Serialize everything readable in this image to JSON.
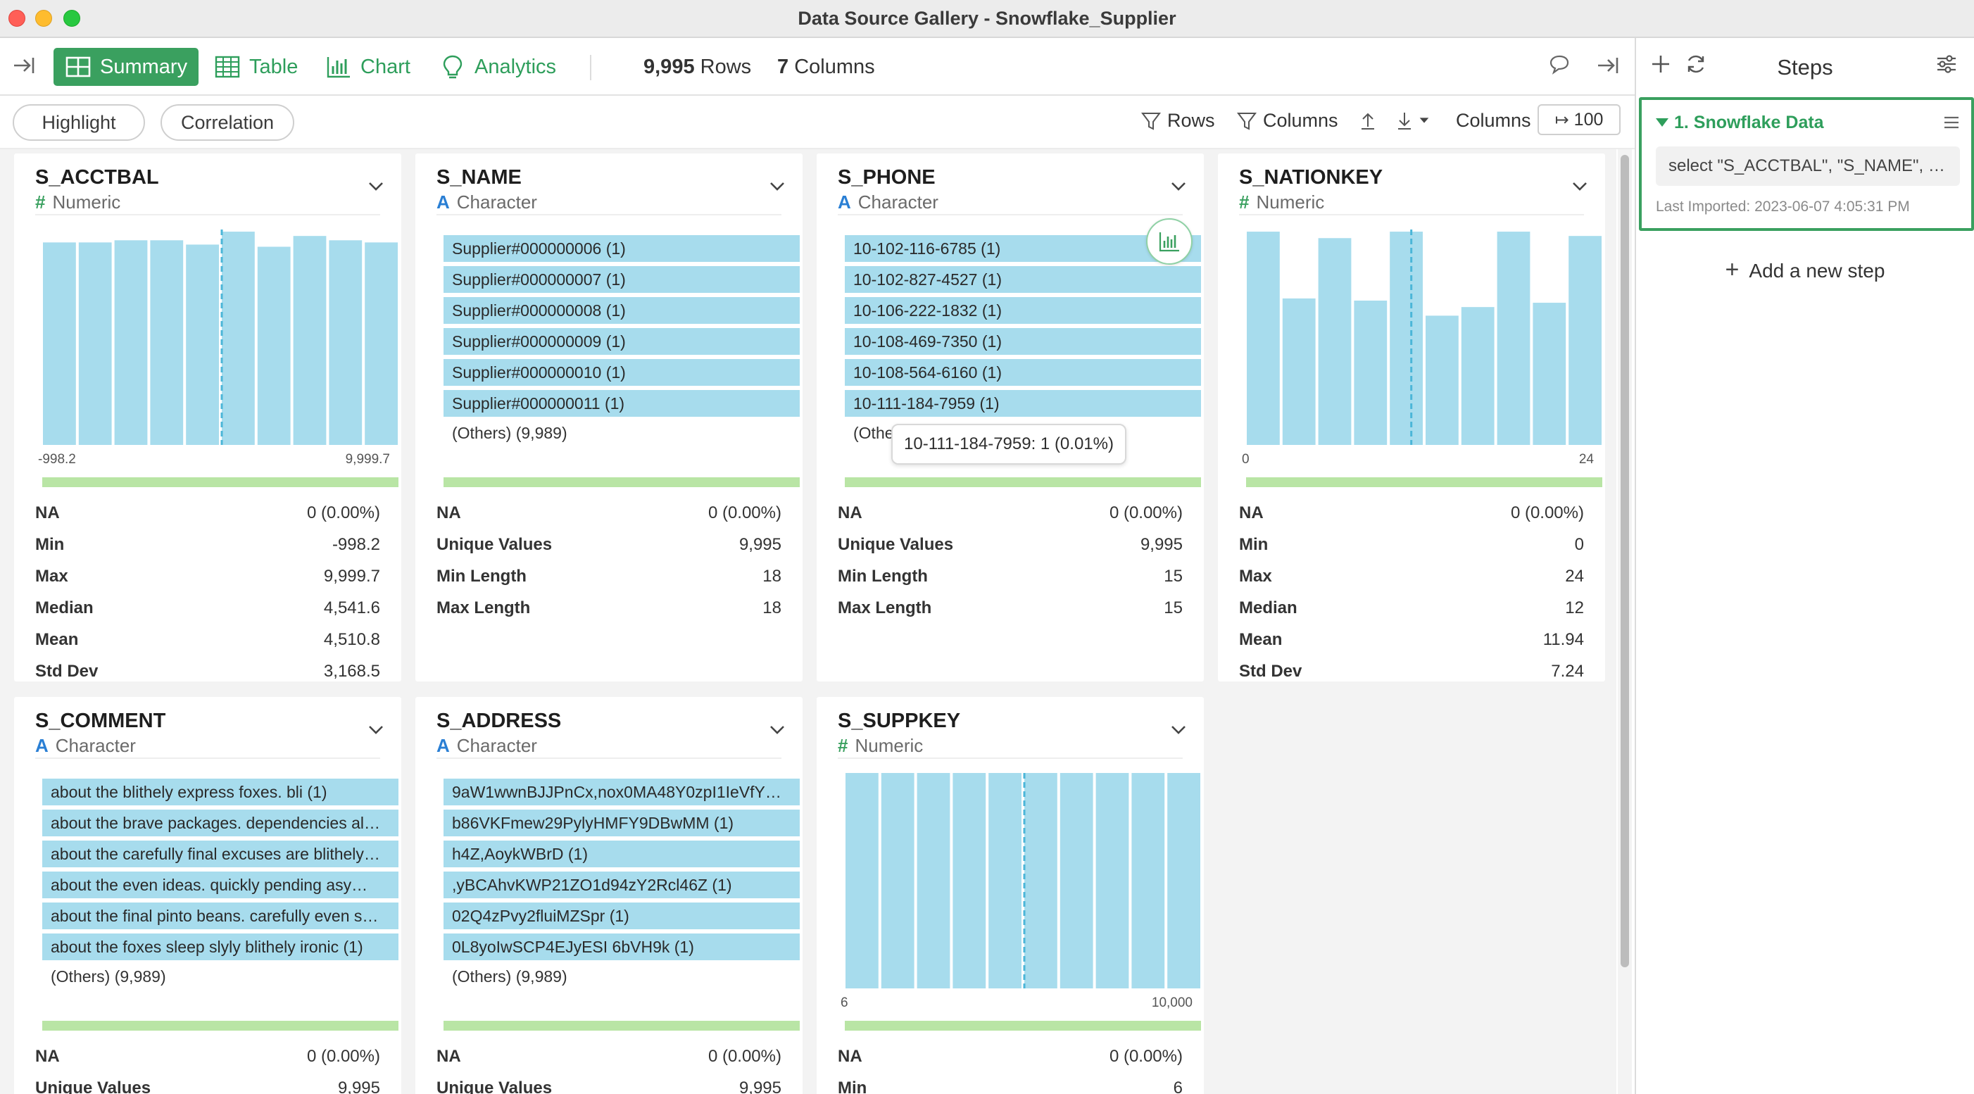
{
  "window": {
    "title": "Data Source Gallery - Snowflake_Supplier"
  },
  "toolbar": {
    "tabs": [
      {
        "label": "Summary",
        "icon": "summary-grid-icon",
        "active": true
      },
      {
        "label": "Table",
        "icon": "table-icon",
        "active": false
      },
      {
        "label": "Chart",
        "icon": "bar-chart-icon",
        "active": false
      },
      {
        "label": "Analytics",
        "icon": "lightbulb-icon",
        "active": false
      }
    ],
    "rows_count": "9,995",
    "rows_label": "Rows",
    "columns_count": "7",
    "columns_label": "Columns"
  },
  "subbar": {
    "highlight": "Highlight",
    "correlation": "Correlation",
    "rows_filter": "Rows",
    "columns_filter": "Columns",
    "columns_label": "Columns",
    "columns_limit": "100"
  },
  "cards": {
    "s_acctbal": {
      "name": "S_ACCTBAL",
      "type": "Numeric",
      "type_glyph": "#",
      "axis_min": "-998.2",
      "axis_max": "9,999.7",
      "hist_bins": [
        0.94,
        0.94,
        0.95,
        0.95,
        0.93,
        0.99,
        0.92,
        0.97,
        0.95,
        0.94
      ],
      "marker_bin": 5.0,
      "stats": [
        {
          "k": "NA",
          "v": "0 (0.00%)"
        },
        {
          "k": "Min",
          "v": "-998.2"
        },
        {
          "k": "Max",
          "v": "9,999.7"
        },
        {
          "k": "Median",
          "v": "4,541.6"
        },
        {
          "k": "Mean",
          "v": "4,510.8"
        },
        {
          "k": "Std Dev",
          "v": "3,168.5"
        }
      ]
    },
    "s_name": {
      "name": "S_NAME",
      "type": "Character",
      "type_glyph": "A",
      "values": [
        "Supplier#000000006 (1)",
        "Supplier#000000007 (1)",
        "Supplier#000000008 (1)",
        "Supplier#000000009 (1)",
        "Supplier#000000010 (1)",
        "Supplier#000000011 (1)"
      ],
      "others": "(Others) (9,989)",
      "stats": [
        {
          "k": "NA",
          "v": "0 (0.00%)"
        },
        {
          "k": "Unique Values",
          "v": "9,995"
        },
        {
          "k": "Min Length",
          "v": "18"
        },
        {
          "k": "Max Length",
          "v": "18"
        }
      ]
    },
    "s_phone": {
      "name": "S_PHONE",
      "type": "Character",
      "type_glyph": "A",
      "values": [
        "10-102-116-6785 (1)",
        "10-102-827-4527 (1)",
        "10-106-222-1832 (1)",
        "10-108-469-7350 (1)",
        "10-108-564-6160 (1)",
        "10-111-184-7959 (1)"
      ],
      "others": "(Others",
      "tooltip": "10-111-184-7959: 1 (0.01%)",
      "stats": [
        {
          "k": "NA",
          "v": "0 (0.00%)"
        },
        {
          "k": "Unique Values",
          "v": "9,995"
        },
        {
          "k": "Min Length",
          "v": "15"
        },
        {
          "k": "Max Length",
          "v": "15"
        }
      ]
    },
    "s_nationkey": {
      "name": "S_NATIONKEY",
      "type": "Numeric",
      "type_glyph": "#",
      "axis_min": "0",
      "axis_max": "24",
      "hist_bins": [
        0.99,
        0.68,
        0.96,
        0.67,
        0.99,
        0.6,
        0.64,
        0.99,
        0.66,
        0.97
      ],
      "marker_bin": 4.6,
      "stats": [
        {
          "k": "NA",
          "v": "0 (0.00%)"
        },
        {
          "k": "Min",
          "v": "0"
        },
        {
          "k": "Max",
          "v": "24"
        },
        {
          "k": "Median",
          "v": "12"
        },
        {
          "k": "Mean",
          "v": "11.94"
        },
        {
          "k": "Std Dev",
          "v": "7.24"
        }
      ]
    },
    "s_comment": {
      "name": "S_COMMENT",
      "type": "Character",
      "type_glyph": "A",
      "values": [
        "about the blithely express foxes. bli (1)",
        "about the brave packages. dependencies al…",
        "about the carefully final excuses are blithely…",
        "about the even ideas. quickly pending asy…",
        "about the final pinto beans. carefully even s…",
        "about the foxes sleep slyly blithely ironic (1)"
      ],
      "others": "(Others) (9,989)",
      "stats": [
        {
          "k": "NA",
          "v": "0 (0.00%)"
        },
        {
          "k": "Unique Values",
          "v": "9,995"
        }
      ]
    },
    "s_address": {
      "name": "S_ADDRESS",
      "type": "Character",
      "type_glyph": "A",
      "values": [
        "9aW1wwnBJJPnCx,nox0MA48Y0zpI1IeVfY…",
        "b86VKFmew29PylyHMFY9DBwMM (1)",
        "h4Z,AoykWBrD (1)",
        ",yBCAhvKWP21ZO1d94zY2Rcl46Z (1)",
        "02Q4zPvy2fluiMZSpr (1)",
        "0L8yoIwSCP4EJyESI 6bVH9k (1)"
      ],
      "others": "(Others) (9,989)",
      "stats": [
        {
          "k": "NA",
          "v": "0 (0.00%)"
        },
        {
          "k": "Unique Values",
          "v": "9,995"
        }
      ]
    },
    "s_suppkey": {
      "name": "S_SUPPKEY",
      "type": "Numeric",
      "type_glyph": "#",
      "axis_min": "6",
      "axis_max": "10,000",
      "hist_bins": [
        1,
        1,
        1,
        1,
        1,
        1,
        1,
        1,
        1,
        1
      ],
      "marker_bin": 5.0,
      "stats": [
        {
          "k": "NA",
          "v": "0 (0.00%)"
        },
        {
          "k": "Min",
          "v": "6"
        }
      ]
    }
  },
  "steps_panel": {
    "title": "Steps",
    "step": {
      "name": "1. Snowflake Data",
      "query": "select \"S_ACCTBAL\", \"S_NAME\", \"…",
      "last_imported": "Last Imported: 2023-06-07 4:05:31 PM"
    },
    "add_step": "Add a new step"
  }
}
